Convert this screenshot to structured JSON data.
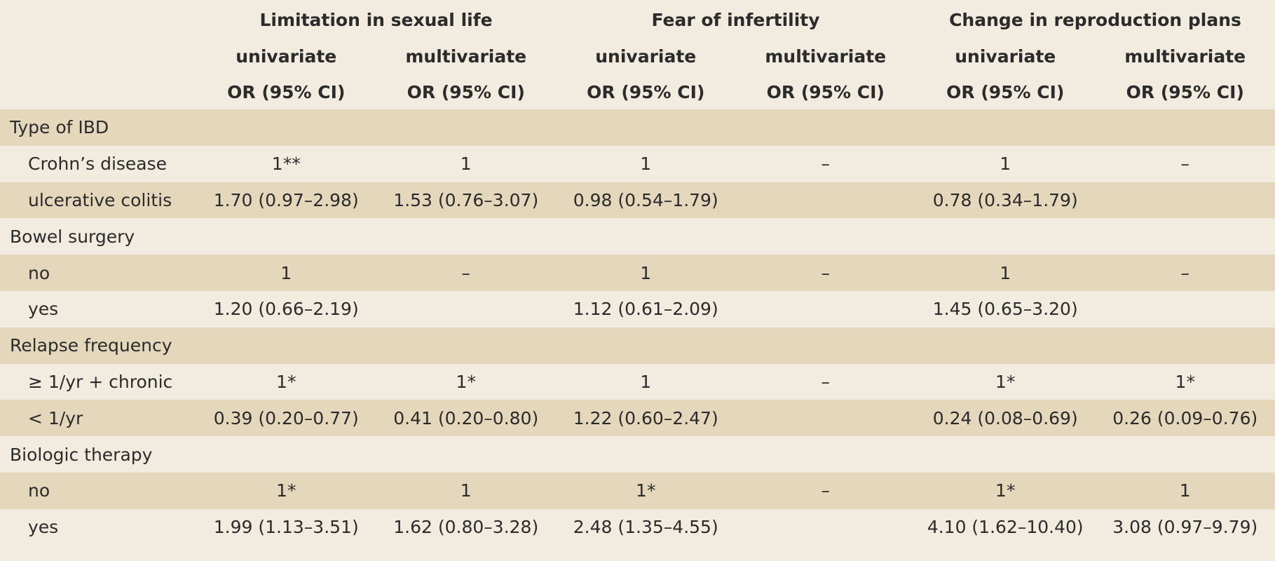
{
  "groups": [
    "Limitation in sexual life",
    "Fear of infertility",
    "Change in reproduction plans"
  ],
  "subheaders": [
    "univariate",
    "multivariate",
    "univariate",
    "multivariate",
    "univariate",
    "multivariate"
  ],
  "ci_headers": [
    "OR (95% CI)",
    "OR (95% CI)",
    "OR (95% CI)",
    "OR (95% CI)",
    "OR (95% CI)",
    "OR (95% CI)"
  ],
  "rows": [
    {
      "label": "Type of IBD",
      "kind": "category",
      "values": [
        "",
        "",
        "",
        "",
        "",
        ""
      ]
    },
    {
      "label": "Crohn’s disease",
      "kind": "sub",
      "values": [
        "1**",
        "1",
        "1",
        "–",
        "1",
        "–"
      ]
    },
    {
      "label": "ulcerative colitis",
      "kind": "sub",
      "values": [
        "1.70 (0.97–2.98)",
        "1.53 (0.76–3.07)",
        "0.98 (0.54–1.79)",
        "",
        "0.78 (0.34–1.79)",
        ""
      ]
    },
    {
      "label": "Bowel surgery",
      "kind": "category",
      "values": [
        "",
        "",
        "",
        "",
        "",
        ""
      ]
    },
    {
      "label": "no",
      "kind": "sub",
      "values": [
        "1",
        "–",
        "1",
        "–",
        "1",
        "–"
      ]
    },
    {
      "label": "yes",
      "kind": "sub",
      "values": [
        "1.20 (0.66–2.19)",
        "",
        "1.12 (0.61–2.09)",
        "",
        "1.45 (0.65–3.20)",
        ""
      ]
    },
    {
      "label": "Relapse frequency",
      "kind": "category",
      "values": [
        "",
        "",
        "",
        "",
        "",
        ""
      ]
    },
    {
      "label": "≥ 1/yr + chronic",
      "kind": "sub",
      "values": [
        "1*",
        "1*",
        "1",
        "–",
        "1*",
        "1*"
      ]
    },
    {
      "label": "< 1/yr",
      "kind": "sub",
      "values": [
        "0.39 (0.20–0.77)",
        "0.41 (0.20–0.80)",
        "1.22 (0.60–2.47)",
        "",
        "0.24 (0.08–0.69)",
        "0.26 (0.09–0.76)"
      ]
    },
    {
      "label": "Biologic therapy",
      "kind": "category",
      "values": [
        "",
        "",
        "",
        "",
        "",
        ""
      ]
    },
    {
      "label": "no",
      "kind": "sub",
      "values": [
        "1*",
        "1",
        "1*",
        "–",
        "1*",
        "1"
      ]
    },
    {
      "label": "yes",
      "kind": "sub",
      "values": [
        "1.99 (1.13–3.51)",
        "1.62 (0.80–3.28)",
        "2.48 (1.35–4.55)",
        "",
        "4.10 (1.62–10.40)",
        "3.08 (0.97–9.79)"
      ]
    }
  ]
}
